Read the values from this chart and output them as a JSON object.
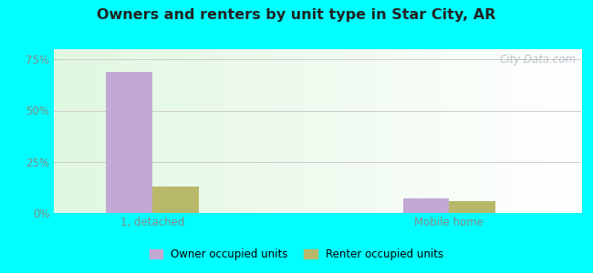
{
  "title": "Owners and renters by unit type in Star City, AR",
  "categories": [
    "1, detached",
    "Mobile home"
  ],
  "owner_values": [
    69.0,
    7.0
  ],
  "renter_values": [
    13.0,
    6.0
  ],
  "owner_color": "#c4a8d4",
  "renter_color": "#b8b86a",
  "ylim": [
    0,
    0.8
  ],
  "yticks": [
    0.0,
    0.25,
    0.5,
    0.75
  ],
  "ytick_labels": [
    "0%",
    "25%",
    "50%",
    "75%"
  ],
  "outer_bg": "#00ffff",
  "plot_bg_top": "#f8fff8",
  "plot_bg_bottom": "#e8f5e8",
  "watermark": "City-Data.com",
  "legend_owner": "Owner occupied units",
  "legend_renter": "Renter occupied units",
  "bar_width": 0.28,
  "group_positions": [
    0.9,
    2.7
  ],
  "xlim": [
    0.3,
    3.5
  ]
}
